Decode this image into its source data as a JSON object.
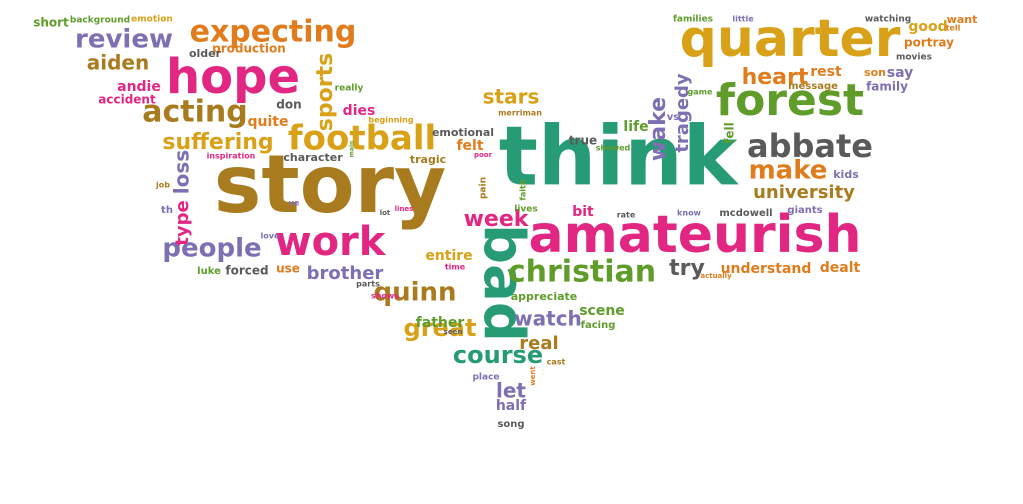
{
  "palette": {
    "gold": "#d8a117",
    "brown": "#a97b1f",
    "green": "#279a76",
    "magenta": "#e22783",
    "purple": "#7e6fb3",
    "olive": "#5f9c2a",
    "orange": "#e07c1c",
    "gray": "#5a5a5a"
  },
  "words": [
    {
      "text": "story",
      "color": "brown"
    },
    {
      "text": "think",
      "color": "green"
    },
    {
      "text": "amateurish",
      "color": "magenta"
    },
    {
      "text": "quarter",
      "color": "gold"
    },
    {
      "text": "forest",
      "color": "olive"
    },
    {
      "text": "bad",
      "color": "green"
    },
    {
      "text": "hope",
      "color": "magenta"
    },
    {
      "text": "work",
      "color": "magenta"
    },
    {
      "text": "football",
      "color": "gold"
    },
    {
      "text": "abbate",
      "color": "gray"
    },
    {
      "text": "christian",
      "color": "olive"
    },
    {
      "text": "expecting",
      "color": "orange"
    },
    {
      "text": "acting",
      "color": "brown"
    },
    {
      "text": "people",
      "color": "purple"
    },
    {
      "text": "review",
      "color": "purple"
    },
    {
      "text": "make",
      "color": "orange"
    },
    {
      "text": "sports",
      "color": "gold"
    },
    {
      "text": "quinn",
      "color": "brown"
    },
    {
      "text": "suffering",
      "color": "gold"
    },
    {
      "text": "great",
      "color": "gold"
    },
    {
      "text": "heart",
      "color": "orange"
    },
    {
      "text": "course",
      "color": "green"
    },
    {
      "text": "watch",
      "color": "purple"
    },
    {
      "text": "wake",
      "color": "purple"
    },
    {
      "text": "tragedy",
      "color": "purple"
    },
    {
      "text": "stars",
      "color": "gold"
    },
    {
      "text": "week",
      "color": "magenta"
    },
    {
      "text": "university",
      "color": "brown"
    },
    {
      "text": "aiden",
      "color": "brown"
    },
    {
      "text": "try",
      "color": "gray"
    },
    {
      "text": "real",
      "color": "brown"
    },
    {
      "text": "loss",
      "color": "purple"
    },
    {
      "text": "let",
      "color": "purple"
    },
    {
      "text": "scene",
      "color": "olive"
    },
    {
      "text": "brother",
      "color": "purple"
    },
    {
      "text": "father",
      "color": "olive"
    },
    {
      "text": "rest",
      "color": "orange"
    },
    {
      "text": "say",
      "color": "purple"
    },
    {
      "text": "felt",
      "color": "orange"
    },
    {
      "text": "entire",
      "color": "gold"
    },
    {
      "text": "type",
      "color": "magenta"
    },
    {
      "text": "understand",
      "color": "orange"
    },
    {
      "text": "dealt",
      "color": "orange"
    },
    {
      "text": "half",
      "color": "purple"
    },
    {
      "text": "life",
      "color": "olive"
    },
    {
      "text": "dies",
      "color": "magenta"
    },
    {
      "text": "quite",
      "color": "orange"
    },
    {
      "text": "don",
      "color": "gray"
    },
    {
      "text": "forced",
      "color": "gray"
    },
    {
      "text": "use",
      "color": "orange"
    },
    {
      "text": "bit",
      "color": "magenta"
    },
    {
      "text": "good",
      "color": "gold"
    },
    {
      "text": "want",
      "color": "orange"
    },
    {
      "text": "andie",
      "color": "magenta"
    },
    {
      "text": "accident",
      "color": "magenta"
    },
    {
      "text": "production",
      "color": "orange"
    },
    {
      "text": "older",
      "color": "gray"
    },
    {
      "text": "kids",
      "color": "purple"
    },
    {
      "text": "portray",
      "color": "orange"
    },
    {
      "text": "family",
      "color": "purple"
    },
    {
      "text": "son",
      "color": "orange"
    },
    {
      "text": "message",
      "color": "brown"
    },
    {
      "text": "emotional",
      "color": "gray"
    },
    {
      "text": "true",
      "color": "gray"
    },
    {
      "text": "character",
      "color": "gray"
    },
    {
      "text": "tragic",
      "color": "brown"
    },
    {
      "text": "appreciate",
      "color": "olive"
    },
    {
      "text": "facing",
      "color": "olive"
    },
    {
      "text": "fell",
      "color": "olive"
    },
    {
      "text": "luke",
      "color": "olive"
    },
    {
      "text": "short",
      "color": "olive"
    },
    {
      "text": "background",
      "color": "olive"
    },
    {
      "text": "emotion",
      "color": "gold"
    },
    {
      "text": "really",
      "color": "olive"
    },
    {
      "text": "beginning",
      "color": "gold"
    },
    {
      "text": "vs",
      "color": "purple"
    },
    {
      "text": "th",
      "color": "purple"
    },
    {
      "text": "mcdowell",
      "color": "gray"
    },
    {
      "text": "giants",
      "color": "purple"
    },
    {
      "text": "song",
      "color": "gray"
    },
    {
      "text": "place",
      "color": "purple"
    },
    {
      "text": "movies",
      "color": "gray"
    },
    {
      "text": "watching",
      "color": "gray"
    },
    {
      "text": "families",
      "color": "olive"
    },
    {
      "text": "little",
      "color": "purple"
    },
    {
      "text": "tell",
      "color": "orange"
    },
    {
      "text": "inspiration",
      "color": "magenta"
    },
    {
      "text": "poor",
      "color": "magenta"
    },
    {
      "text": "pain",
      "color": "brown"
    },
    {
      "text": "faith",
      "color": "olive"
    },
    {
      "text": "lives",
      "color": "olive"
    },
    {
      "text": "showed",
      "color": "olive"
    },
    {
      "text": "rate",
      "color": "gray"
    },
    {
      "text": "know",
      "color": "purple"
    },
    {
      "text": "game",
      "color": "olive"
    },
    {
      "text": "merriman",
      "color": "brown"
    },
    {
      "text": "job",
      "color": "brown"
    },
    {
      "text": "love",
      "color": "purple"
    },
    {
      "text": "ve",
      "color": "purple"
    },
    {
      "text": "lot",
      "color": "gray"
    },
    {
      "text": "lines",
      "color": "magenta"
    },
    {
      "text": "time",
      "color": "magenta"
    },
    {
      "text": "parts",
      "color": "gray"
    },
    {
      "text": "shows",
      "color": "magenta"
    },
    {
      "text": "seen",
      "color": "gray"
    },
    {
      "text": "cast",
      "color": "brown"
    },
    {
      "text": "went",
      "color": "orange"
    },
    {
      "text": "actually",
      "color": "orange"
    },
    {
      "text": "main",
      "color": "olive"
    }
  ]
}
